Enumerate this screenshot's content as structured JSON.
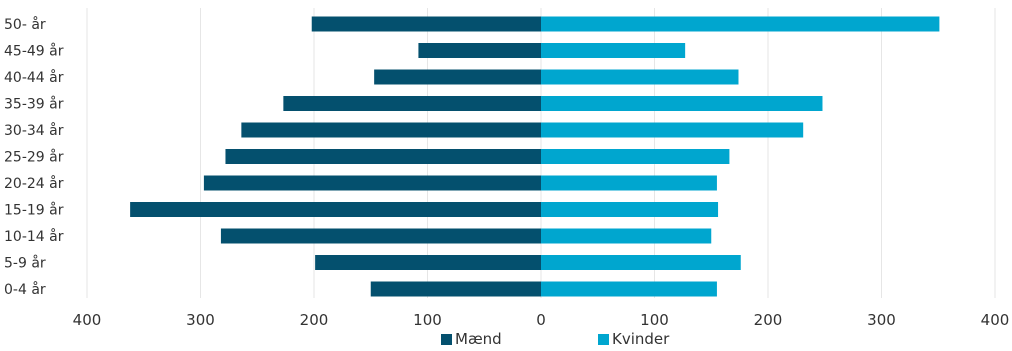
{
  "chart_data": {
    "type": "bar",
    "orientation": "horizontal",
    "layout": "diverging",
    "categories": [
      "50- år",
      "45-49 år",
      "40-44 år",
      "35-39 år",
      "30-34 år",
      "25-29 år",
      "20-24 år",
      "15-19 år",
      "10-14 år",
      "5-9 år",
      "0-4 år"
    ],
    "series": [
      {
        "name": "Mænd",
        "color": "#04506e",
        "side": "left",
        "values": [
          202,
          108,
          147,
          227,
          264,
          278,
          297,
          362,
          282,
          199,
          150
        ]
      },
      {
        "name": "Kvinder",
        "color": "#00a6cf",
        "side": "right",
        "values": [
          351,
          127,
          174,
          248,
          231,
          166,
          155,
          156,
          150,
          176,
          155
        ]
      }
    ],
    "xlim": [
      -400,
      400
    ],
    "xticks": [
      -400,
      -300,
      -200,
      -100,
      0,
      100,
      200,
      300,
      400
    ],
    "xtick_labels": [
      "400",
      "300",
      "200",
      "100",
      "0",
      "100",
      "200",
      "300",
      "400"
    ],
    "grid": "vertical",
    "legend": "bottom-center",
    "title": "",
    "xlabel": "",
    "ylabel": ""
  }
}
